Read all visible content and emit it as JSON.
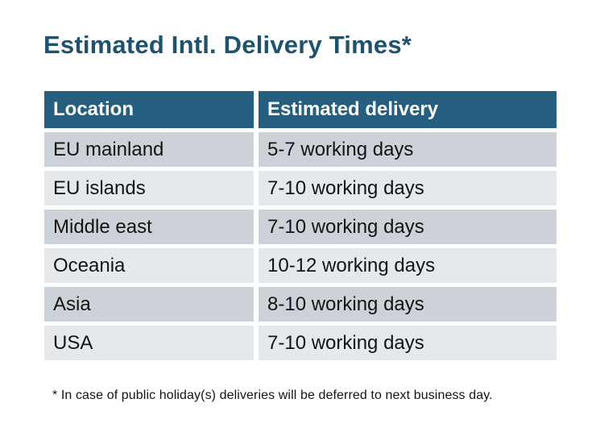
{
  "title": "Estimated Intl. Delivery Times*",
  "table": {
    "columns": [
      "Location",
      "Estimated delivery"
    ],
    "rows": [
      {
        "location": "EU mainland",
        "estimated_delivery": "5-7 working days"
      },
      {
        "location": "EU islands",
        "estimated_delivery": "7-10 working days"
      },
      {
        "location": "Middle east",
        "estimated_delivery": "7-10 working days"
      },
      {
        "location": "Oceania",
        "estimated_delivery": "10-12 working days"
      },
      {
        "location": "Asia",
        "estimated_delivery": "8-10 working days"
      },
      {
        "location": "USA",
        "estimated_delivery": "7-10 working days"
      }
    ]
  },
  "footnote": "* In case of public holiday(s) deliveries will be deferred to next business day.",
  "colors": {
    "title_text": "#1D536E",
    "header_bg": "#245F7F",
    "header_text": "#FFFFFF",
    "row_dark": "#CDD1D8",
    "row_light": "#E6E9EC",
    "body_text": "#141414",
    "background": "#FFFFFF"
  }
}
